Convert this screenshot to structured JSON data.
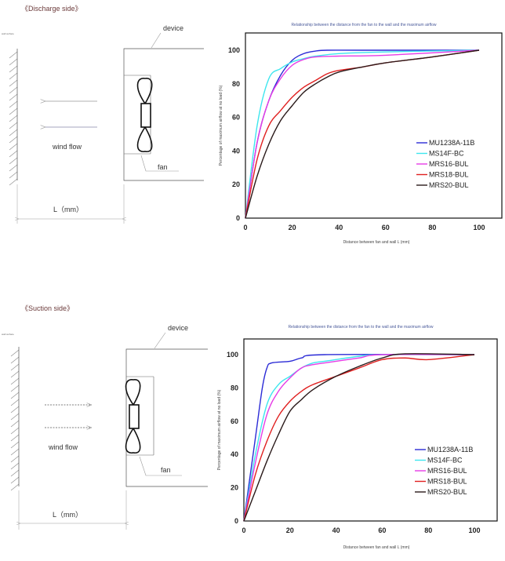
{
  "diagrams": [
    {
      "section_label": "《Discharge side》",
      "wall_label": "wall surface",
      "device_label": "device",
      "flow_label": "wind flow",
      "fan_label": "fan",
      "distance_label": "L（mm）"
    },
    {
      "section_label": "《Suction side》",
      "wall_label": "wall surface",
      "device_label": "device",
      "flow_label": "wind flow",
      "fan_label": "fan",
      "distance_label": "L（mm）"
    }
  ],
  "chart_data": [
    {
      "type": "line",
      "title": "Relationship between the distance from the fan to the wall and the maximum airflow",
      "xlabel": "Distance between fan and wall L (mm)",
      "ylabel": "Percentage of maximum airflow at no load (%)",
      "xlim": [
        0,
        100
      ],
      "ylim": [
        0,
        100
      ],
      "xticks": [
        0,
        20,
        40,
        60,
        80,
        100
      ],
      "yticks": [
        0,
        20,
        40,
        60,
        80,
        100
      ],
      "grid": false,
      "legend": "center-right",
      "series": [
        {
          "name": "MU1238A-11B",
          "color": "#2b2bd6",
          "x": [
            0,
            5,
            10,
            15,
            20,
            25,
            30,
            35,
            50,
            100
          ],
          "y": [
            0,
            45,
            70,
            85,
            94,
            98,
            99.5,
            100,
            100,
            100
          ]
        },
        {
          "name": "MS14F-BC",
          "color": "#3ee6ee",
          "x": [
            0,
            5,
            10,
            15,
            20,
            25,
            30,
            40,
            60,
            100
          ],
          "y": [
            0,
            55,
            83,
            89,
            93,
            95,
            96.5,
            98,
            99,
            100
          ]
        },
        {
          "name": "MRS16-BUL",
          "color": "#e63ce6",
          "x": [
            0,
            5,
            10,
            15,
            20,
            25,
            30,
            40,
            60,
            100
          ],
          "y": [
            0,
            45,
            70,
            83,
            91,
            94.5,
            96,
            96.5,
            97,
            100
          ]
        },
        {
          "name": "MRS18-BUL",
          "color": "#e02020",
          "x": [
            0,
            5,
            10,
            15,
            20,
            25,
            30,
            35,
            40,
            50,
            60,
            80,
            100
          ],
          "y": [
            0,
            35,
            55,
            64,
            72,
            78,
            82,
            86,
            88,
            90,
            92.5,
            96,
            100
          ]
        },
        {
          "name": "MRS20-BUL",
          "color": "#2a1a1a",
          "x": [
            0,
            5,
            10,
            15,
            20,
            25,
            30,
            35,
            40,
            50,
            60,
            80,
            100
          ],
          "y": [
            0,
            25,
            44,
            58,
            67,
            75,
            80,
            84,
            87,
            90,
            92.5,
            96,
            100
          ]
        }
      ]
    },
    {
      "type": "line",
      "title": "Relationship between the distance from the fan to the wall and the maximum airflow",
      "xlabel": "Distance between fan and wall L (mm)",
      "ylabel": "Percentage of maximum airflow at no load (%)",
      "xlim": [
        0,
        100
      ],
      "ylim": [
        0,
        100
      ],
      "xticks": [
        0,
        20,
        40,
        60,
        80,
        100
      ],
      "yticks": [
        0,
        20,
        40,
        60,
        80,
        100
      ],
      "grid": false,
      "legend": "center-right",
      "series": [
        {
          "name": "MU1238A-11B",
          "color": "#2b2bd6",
          "x": [
            0,
            5,
            8,
            10,
            12,
            20,
            25,
            35,
            100
          ],
          "y": [
            0,
            50,
            80,
            92,
            95,
            96,
            98,
            100,
            100
          ]
        },
        {
          "name": "MS14F-BC",
          "color": "#3ee6ee",
          "x": [
            0,
            5,
            10,
            15,
            20,
            25,
            30,
            35,
            50,
            60,
            100
          ],
          "y": [
            0,
            40,
            70,
            82,
            87,
            92,
            95,
            96,
            99,
            100,
            100
          ]
        },
        {
          "name": "MRS16-BUL",
          "color": "#e63ce6",
          "x": [
            0,
            5,
            10,
            15,
            20,
            25,
            30,
            40,
            50,
            60,
            100
          ],
          "y": [
            0,
            35,
            64,
            78,
            86,
            92,
            94,
            96,
            98,
            100,
            100
          ]
        },
        {
          "name": "MRS18-BUL",
          "color": "#e02020",
          "x": [
            0,
            5,
            10,
            15,
            20,
            25,
            30,
            40,
            50,
            60,
            70,
            80,
            100
          ],
          "y": [
            0,
            28,
            48,
            63,
            72,
            78,
            82,
            87,
            92,
            97,
            98,
            97,
            100
          ]
        },
        {
          "name": "MRS20-BUL",
          "color": "#2a1a1a",
          "x": [
            0,
            5,
            10,
            15,
            20,
            25,
            30,
            40,
            50,
            60,
            70,
            100
          ],
          "y": [
            0,
            18,
            36,
            52,
            66,
            73,
            79,
            87,
            93,
            98,
            100.5,
            100
          ]
        }
      ]
    }
  ]
}
